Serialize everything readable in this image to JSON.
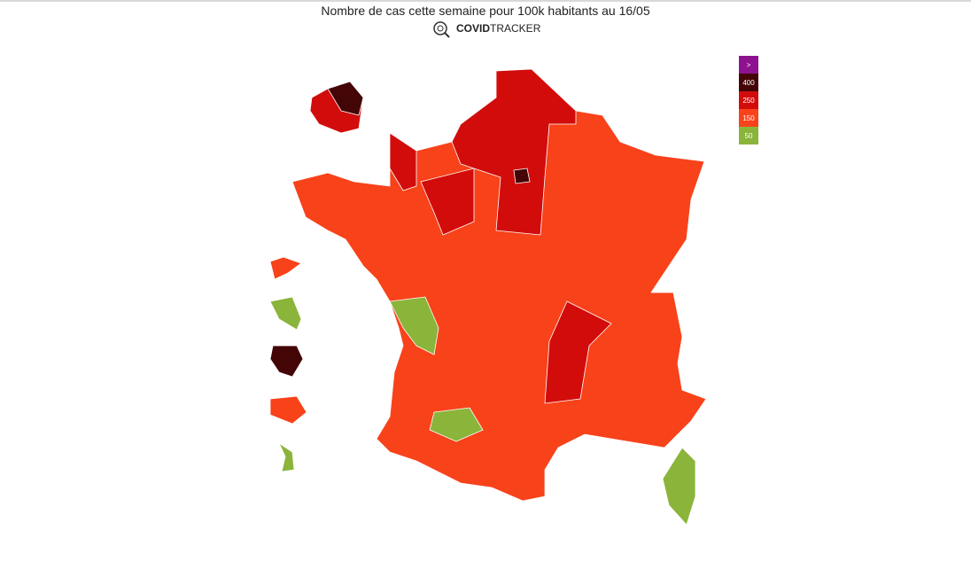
{
  "header": {
    "title": "Nombre de cas cette semaine pour 100k habitants au 16/05",
    "brand_bold": "COVID",
    "brand_light": "TRACKER"
  },
  "legend": {
    "items": [
      {
        "label": ">",
        "color": "#8e1290"
      },
      {
        "label": "400",
        "color": "#440507"
      },
      {
        "label": "250",
        "color": "#d20c0b"
      },
      {
        "label": "150",
        "color": "#f8421a"
      },
      {
        "label": "50",
        "color": "#8bb43b"
      }
    ]
  }
}
